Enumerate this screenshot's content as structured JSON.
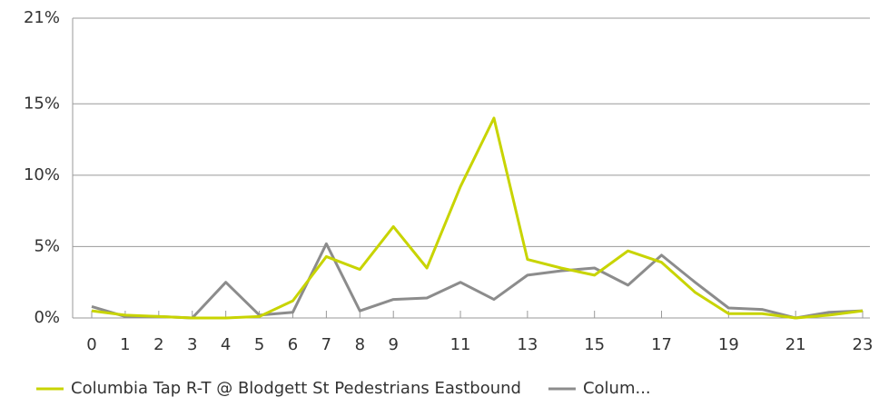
{
  "chart_data": {
    "type": "line",
    "x": [
      0,
      1,
      2,
      3,
      4,
      5,
      6,
      7,
      8,
      9,
      10,
      11,
      12,
      13,
      14,
      15,
      16,
      17,
      18,
      19,
      20,
      21,
      22,
      23
    ],
    "series": [
      {
        "name": "Columbia Tap R-T @ Blodgett St Pedestrians Eastbound",
        "color": "#c8d400",
        "values": [
          0.5,
          0.2,
          0.1,
          0,
          0,
          0.1,
          1.2,
          4.3,
          3.4,
          6.4,
          3.5,
          9.2,
          14,
          4.1,
          3.5,
          3.0,
          4.7,
          3.9,
          1.8,
          0.3,
          0.3,
          0,
          0.2,
          0.5
        ]
      },
      {
        "name": "Colum...",
        "color": "#8c8c8c",
        "values": [
          0.8,
          0.1,
          0.1,
          0,
          2.5,
          0.2,
          0.4,
          5.2,
          0.5,
          1.3,
          1.4,
          2.5,
          1.3,
          3.0,
          3.3,
          3.5,
          2.3,
          4.4,
          2.5,
          0.7,
          0.6,
          0,
          0.4,
          0.5
        ]
      }
    ],
    "xlim": [
      0,
      23
    ],
    "xticks": [
      0,
      1,
      2,
      3,
      4,
      5,
      6,
      7,
      8,
      9,
      11,
      13,
      15,
      17,
      19,
      21,
      23
    ],
    "ylim": [
      0,
      21
    ],
    "yticks": [
      {
        "value": 0,
        "label": "0%"
      },
      {
        "value": 5,
        "label": "5%"
      },
      {
        "value": 10,
        "label": "10%"
      },
      {
        "value": 15,
        "label": "15%"
      },
      {
        "value": 21,
        "label": "21%"
      }
    ],
    "grid": true
  }
}
